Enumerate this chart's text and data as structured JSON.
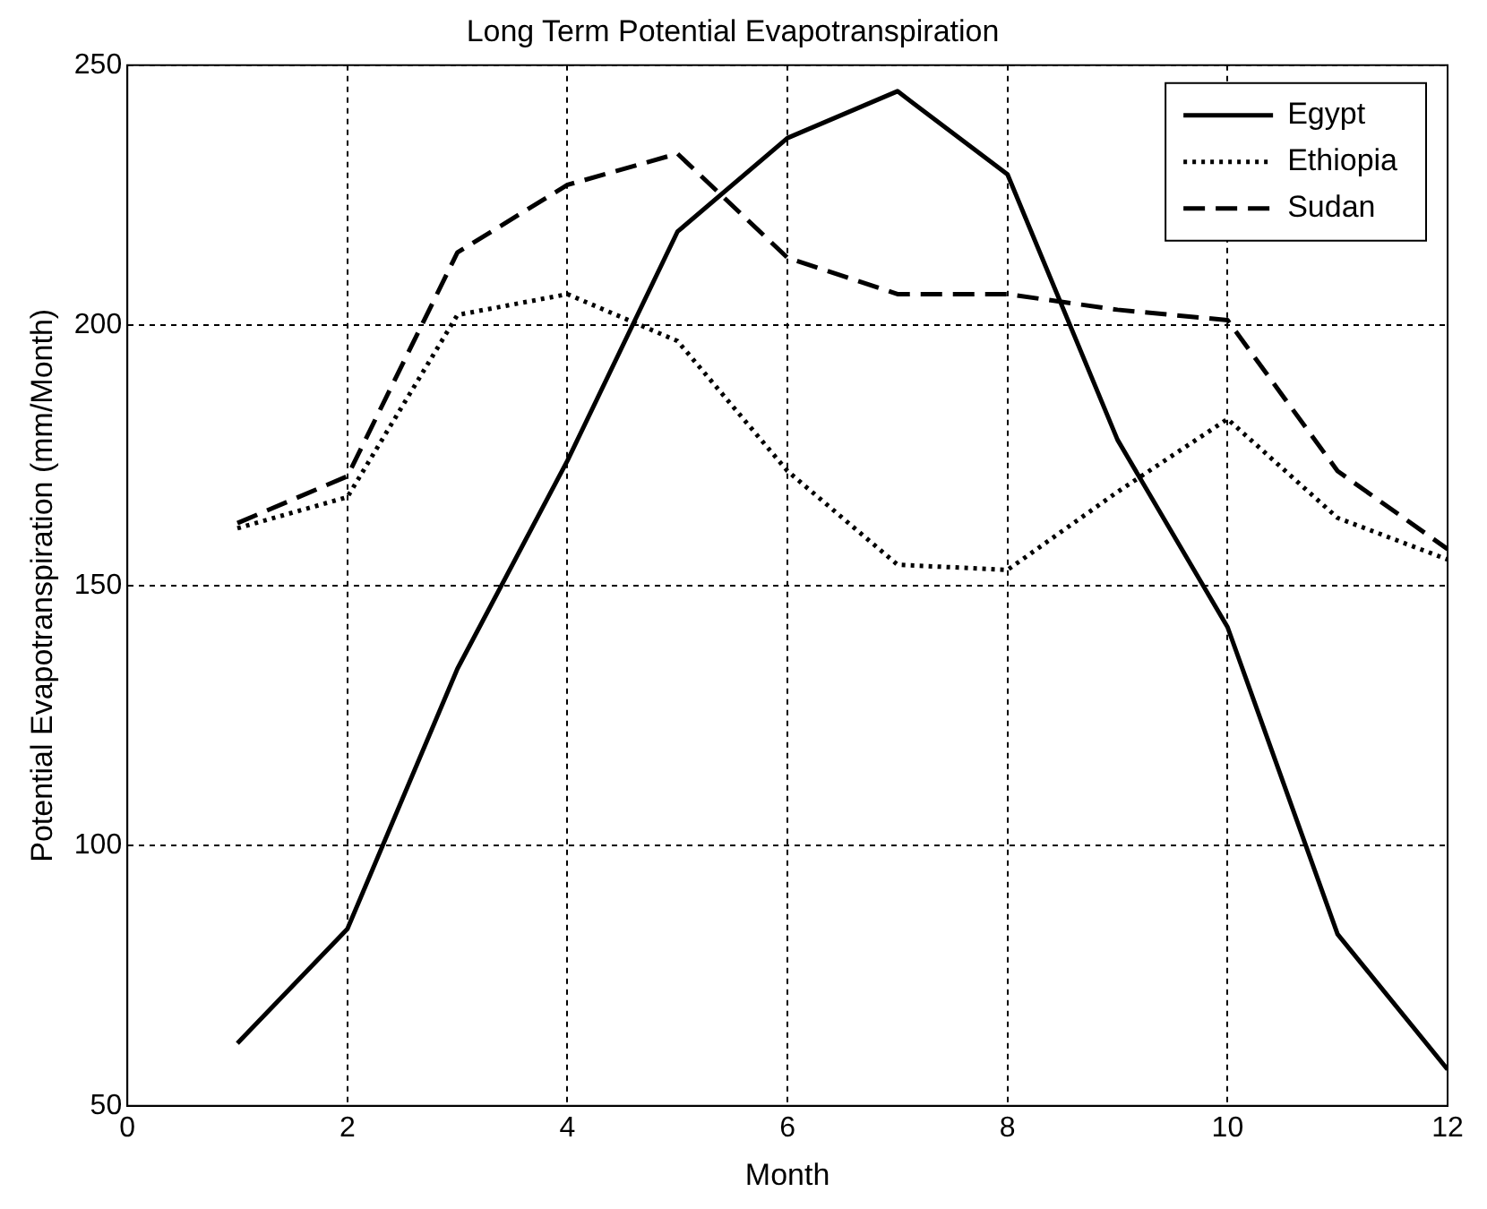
{
  "chart_data": {
    "type": "line",
    "title": "Long Term Potential Evapotranspiration",
    "xlabel": "Month",
    "ylabel": "Potential Evapotranspiration (mm/Month)",
    "x": [
      1,
      2,
      3,
      4,
      5,
      6,
      7,
      8,
      9,
      10,
      11,
      12
    ],
    "series": [
      {
        "name": "Egypt",
        "color": "#000000",
        "line_style": "solid",
        "values": [
          62,
          84,
          134,
          174,
          218,
          236,
          245,
          229,
          178,
          142,
          83,
          57
        ]
      },
      {
        "name": "Ethiopia",
        "color": "#000000",
        "line_style": "dotted",
        "values": [
          161,
          167,
          202,
          206,
          197,
          172,
          154,
          153,
          168,
          182,
          163,
          155
        ]
      },
      {
        "name": "Sudan",
        "color": "#000000",
        "line_style": "dashed",
        "values": [
          162,
          171,
          214,
          227,
          233,
          213,
          206,
          206,
          203,
          201,
          172,
          157
        ]
      }
    ],
    "xlim": [
      0,
      12
    ],
    "xticks": [
      0,
      2,
      4,
      6,
      8,
      10,
      12
    ],
    "ylim": [
      50,
      250
    ],
    "yticks": [
      50,
      100,
      150,
      200,
      250
    ],
    "grid": true,
    "legend": "top right",
    "marker": "none"
  }
}
